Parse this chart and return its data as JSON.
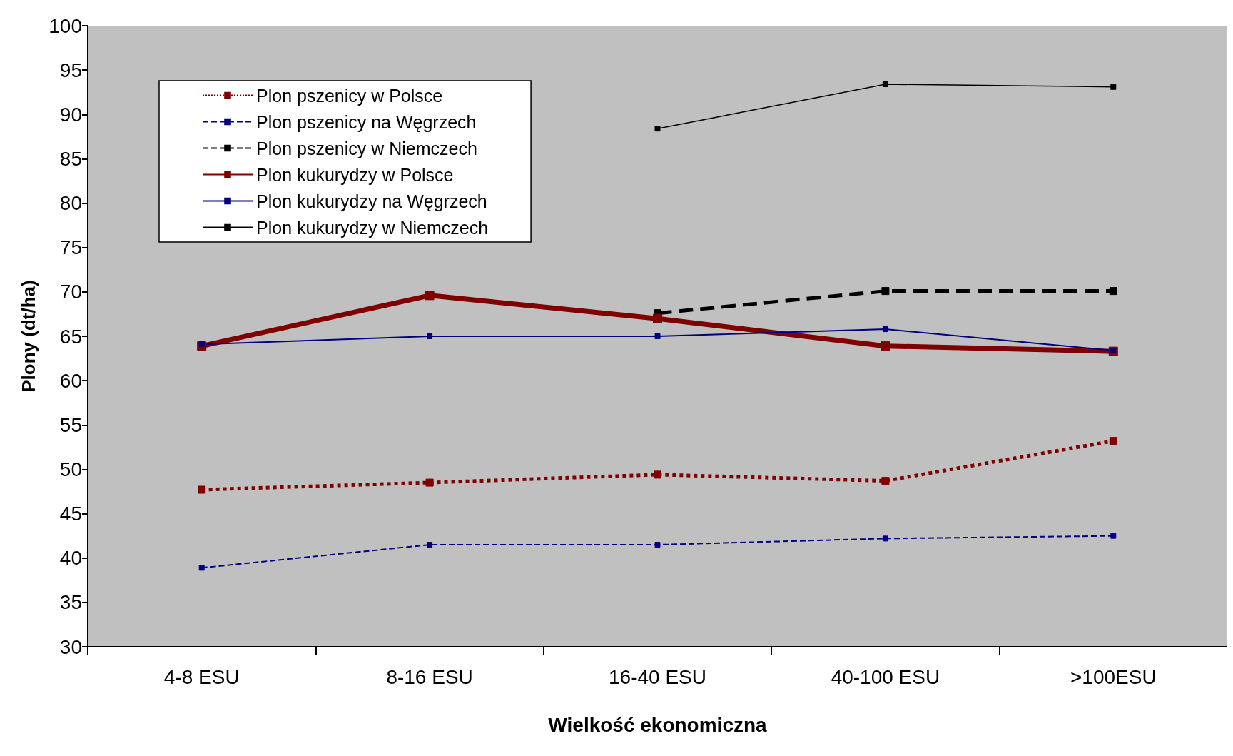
{
  "chart_data": {
    "type": "line",
    "xlabel": "Wielkość ekonomiczna",
    "ylabel": "Plony (dt/ha)",
    "categories": [
      "4-8 ESU",
      "8-16 ESU",
      "16-40 ESU",
      "40-100 ESU",
      ">100ESU"
    ],
    "series": [
      {
        "name": "Plon pszenicy w Polsce",
        "color": "#800000",
        "line_style": "dotted",
        "values": [
          47.7,
          48.5,
          49.4,
          48.7,
          53.2
        ]
      },
      {
        "name": "Plon pszenicy na Węgrzech",
        "color": "#000080",
        "line_style": "dashed",
        "values": [
          38.9,
          41.5,
          41.5,
          42.2,
          42.5
        ]
      },
      {
        "name": "Plon pszenicy w Niemczech",
        "color": "#000000",
        "line_style": "dashed",
        "values": [
          null,
          null,
          67.6,
          70.1,
          70.1
        ]
      },
      {
        "name": "Plon kukurydzy w Polsce",
        "color": "#800000",
        "line_style": "solid",
        "values": [
          63.9,
          69.6,
          67.0,
          63.9,
          63.3
        ]
      },
      {
        "name": "Plon kukurydzy na Węgrzech",
        "color": "#000080",
        "line_style": "solid",
        "values": [
          64.1,
          65.0,
          65.0,
          65.8,
          63.4
        ]
      },
      {
        "name": "Plon kukurydzy w Niemczech",
        "color": "#000000",
        "line_style": "solid",
        "values": [
          null,
          null,
          88.4,
          93.4,
          93.1
        ]
      }
    ],
    "ylim": [
      30,
      100
    ],
    "yticks": [
      30,
      35,
      40,
      45,
      50,
      55,
      60,
      65,
      70,
      75,
      80,
      85,
      90,
      95,
      100
    ],
    "grid": false,
    "legend": "top left",
    "marker": "square"
  }
}
